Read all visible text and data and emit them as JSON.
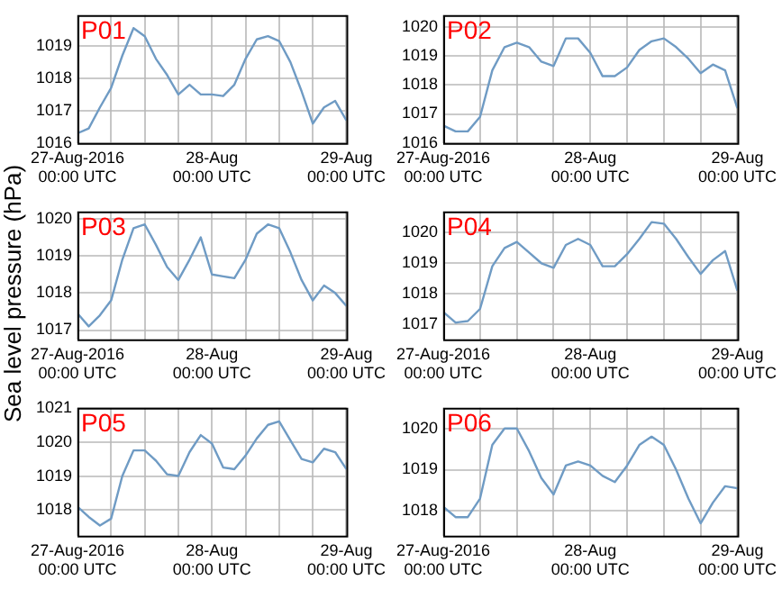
{
  "chart_data": [
    {
      "type": "line",
      "title": "P01",
      "grid": true,
      "legend": false,
      "x": [
        "2016-08-27T00:00",
        "2016-08-27T02:00",
        "2016-08-27T04:00",
        "2016-08-27T06:00",
        "2016-08-27T08:00",
        "2016-08-27T10:00",
        "2016-08-27T12:00",
        "2016-08-27T14:00",
        "2016-08-27T16:00",
        "2016-08-27T18:00",
        "2016-08-27T20:00",
        "2016-08-27T22:00",
        "2016-08-28T00:00",
        "2016-08-28T02:00",
        "2016-08-28T04:00",
        "2016-08-28T06:00",
        "2016-08-28T08:00",
        "2016-08-28T10:00",
        "2016-08-28T12:00",
        "2016-08-28T14:00",
        "2016-08-28T16:00",
        "2016-08-28T18:00",
        "2016-08-28T20:00",
        "2016-08-28T22:00",
        "2016-08-29T00:00"
      ],
      "xlim": [
        "2016-08-27T00:00",
        "2016-08-29T00:00"
      ],
      "xticks": [
        {
          "value": "2016-08-27T00:00",
          "label": "27-Aug-2016\n00:00 UTC"
        },
        {
          "value": "2016-08-27T06:00",
          "label": null
        },
        {
          "value": "2016-08-27T12:00",
          "label": null
        },
        {
          "value": "2016-08-27T18:00",
          "label": null
        },
        {
          "value": "2016-08-28T00:00",
          "label": "28-Aug\n00:00 UTC"
        },
        {
          "value": "2016-08-28T06:00",
          "label": null
        },
        {
          "value": "2016-08-28T12:00",
          "label": null
        },
        {
          "value": "2016-08-28T18:00",
          "label": null
        },
        {
          "value": "2016-08-29T00:00",
          "label": "29-Aug\n00:00 UTC"
        }
      ],
      "ylim": [
        1016,
        1019.95
      ],
      "yticks": [
        1016,
        1017,
        1018,
        1019
      ],
      "series": [
        {
          "color": "#6f9bc4",
          "values": [
            1016.3,
            1016.45,
            1017.1,
            1017.7,
            1018.7,
            1019.55,
            1019.3,
            1018.6,
            1018.1,
            1017.5,
            1017.8,
            1017.5,
            1017.5,
            1017.45,
            1017.8,
            1018.6,
            1019.2,
            1019.3,
            1019.15,
            1018.5,
            1017.6,
            1016.6,
            1017.1,
            1017.3,
            1016.7
          ]
        }
      ]
    },
    {
      "type": "line",
      "title": "P02",
      "grid": true,
      "legend": false,
      "x": [
        "2016-08-27T00:00",
        "2016-08-27T02:00",
        "2016-08-27T04:00",
        "2016-08-27T06:00",
        "2016-08-27T08:00",
        "2016-08-27T10:00",
        "2016-08-27T12:00",
        "2016-08-27T14:00",
        "2016-08-27T16:00",
        "2016-08-27T18:00",
        "2016-08-27T20:00",
        "2016-08-27T22:00",
        "2016-08-28T00:00",
        "2016-08-28T02:00",
        "2016-08-28T04:00",
        "2016-08-28T06:00",
        "2016-08-28T08:00",
        "2016-08-28T10:00",
        "2016-08-28T12:00",
        "2016-08-28T14:00",
        "2016-08-28T16:00",
        "2016-08-28T18:00",
        "2016-08-28T20:00",
        "2016-08-28T22:00",
        "2016-08-29T00:00"
      ],
      "xlim": [
        "2016-08-27T00:00",
        "2016-08-29T00:00"
      ],
      "xticks": [
        {
          "value": "2016-08-27T00:00",
          "label": "27-Aug-2016\n00:00 UTC"
        },
        {
          "value": "2016-08-27T06:00",
          "label": null
        },
        {
          "value": "2016-08-27T12:00",
          "label": null
        },
        {
          "value": "2016-08-27T18:00",
          "label": null
        },
        {
          "value": "2016-08-28T00:00",
          "label": "28-Aug\n00:00 UTC"
        },
        {
          "value": "2016-08-28T06:00",
          "label": null
        },
        {
          "value": "2016-08-28T12:00",
          "label": null
        },
        {
          "value": "2016-08-28T18:00",
          "label": null
        },
        {
          "value": "2016-08-29T00:00",
          "label": "29-Aug\n00:00 UTC"
        }
      ],
      "ylim": [
        1016,
        1020.4
      ],
      "yticks": [
        1016,
        1017,
        1018,
        1019,
        1020
      ],
      "series": [
        {
          "color": "#6f9bc4",
          "values": [
            1016.6,
            1016.4,
            1016.4,
            1016.9,
            1018.5,
            1019.3,
            1019.45,
            1019.3,
            1018.8,
            1018.65,
            1019.6,
            1019.6,
            1019.1,
            1018.3,
            1018.3,
            1018.6,
            1019.2,
            1019.5,
            1019.6,
            1019.3,
            1018.9,
            1018.4,
            1018.7,
            1018.5,
            1017.2
          ]
        }
      ]
    },
    {
      "type": "line",
      "title": "P03",
      "ylabel": "Sea level pressure (hPa)",
      "grid": true,
      "legend": false,
      "x": [
        "2016-08-27T00:00",
        "2016-08-27T02:00",
        "2016-08-27T04:00",
        "2016-08-27T06:00",
        "2016-08-27T08:00",
        "2016-08-27T10:00",
        "2016-08-27T12:00",
        "2016-08-27T14:00",
        "2016-08-27T16:00",
        "2016-08-27T18:00",
        "2016-08-27T20:00",
        "2016-08-27T22:00",
        "2016-08-28T00:00",
        "2016-08-28T02:00",
        "2016-08-28T04:00",
        "2016-08-28T06:00",
        "2016-08-28T08:00",
        "2016-08-28T10:00",
        "2016-08-28T12:00",
        "2016-08-28T14:00",
        "2016-08-28T16:00",
        "2016-08-28T18:00",
        "2016-08-28T20:00",
        "2016-08-28T22:00",
        "2016-08-29T00:00"
      ],
      "xlim": [
        "2016-08-27T00:00",
        "2016-08-29T00:00"
      ],
      "xticks": [
        {
          "value": "2016-08-27T00:00",
          "label": "27-Aug-2016\n00:00 UTC"
        },
        {
          "value": "2016-08-27T06:00",
          "label": null
        },
        {
          "value": "2016-08-27T12:00",
          "label": null
        },
        {
          "value": "2016-08-27T18:00",
          "label": null
        },
        {
          "value": "2016-08-28T00:00",
          "label": "28-Aug\n00:00 UTC"
        },
        {
          "value": "2016-08-28T06:00",
          "label": null
        },
        {
          "value": "2016-08-28T12:00",
          "label": null
        },
        {
          "value": "2016-08-28T18:00",
          "label": null
        },
        {
          "value": "2016-08-29T00:00",
          "label": "29-Aug\n00:00 UTC"
        }
      ],
      "ylim": [
        1016.75,
        1020.2
      ],
      "yticks": [
        1017,
        1018,
        1019,
        1020
      ],
      "series": [
        {
          "color": "#6f9bc4",
          "values": [
            1017.45,
            1017.1,
            1017.4,
            1017.8,
            1018.9,
            1019.75,
            1019.85,
            1019.3,
            1018.7,
            1018.35,
            1018.9,
            1019.5,
            1018.5,
            1018.45,
            1018.4,
            1018.9,
            1019.6,
            1019.85,
            1019.75,
            1019.1,
            1018.35,
            1017.8,
            1018.2,
            1018.0,
            1017.65
          ]
        }
      ]
    },
    {
      "type": "line",
      "title": "P04",
      "grid": true,
      "legend": false,
      "x": [
        "2016-08-27T00:00",
        "2016-08-27T02:00",
        "2016-08-27T04:00",
        "2016-08-27T06:00",
        "2016-08-27T08:00",
        "2016-08-27T10:00",
        "2016-08-27T12:00",
        "2016-08-27T14:00",
        "2016-08-27T16:00",
        "2016-08-27T18:00",
        "2016-08-27T20:00",
        "2016-08-27T22:00",
        "2016-08-28T00:00",
        "2016-08-28T02:00",
        "2016-08-28T04:00",
        "2016-08-28T06:00",
        "2016-08-28T08:00",
        "2016-08-28T10:00",
        "2016-08-28T12:00",
        "2016-08-28T14:00",
        "2016-08-28T16:00",
        "2016-08-28T18:00",
        "2016-08-28T20:00",
        "2016-08-28T22:00",
        "2016-08-29T00:00"
      ],
      "xlim": [
        "2016-08-27T00:00",
        "2016-08-29T00:00"
      ],
      "xticks": [
        {
          "value": "2016-08-27T00:00",
          "label": "27-Aug-2016\n00:00 UTC"
        },
        {
          "value": "2016-08-27T06:00",
          "label": null
        },
        {
          "value": "2016-08-27T12:00",
          "label": null
        },
        {
          "value": "2016-08-27T18:00",
          "label": null
        },
        {
          "value": "2016-08-28T00:00",
          "label": "28-Aug\n00:00 UTC"
        },
        {
          "value": "2016-08-28T06:00",
          "label": null
        },
        {
          "value": "2016-08-28T12:00",
          "label": null
        },
        {
          "value": "2016-08-28T18:00",
          "label": null
        },
        {
          "value": "2016-08-29T00:00",
          "label": "29-Aug\n00:00 UTC"
        }
      ],
      "ylim": [
        1016.5,
        1020.7
      ],
      "yticks": [
        1017,
        1018,
        1019,
        1020
      ],
      "series": [
        {
          "color": "#6f9bc4",
          "values": [
            1017.4,
            1017.05,
            1017.1,
            1017.5,
            1018.9,
            1019.5,
            1019.7,
            1019.35,
            1019.0,
            1018.85,
            1019.6,
            1019.8,
            1019.6,
            1018.9,
            1018.9,
            1019.3,
            1019.8,
            1020.35,
            1020.3,
            1019.8,
            1019.2,
            1018.65,
            1019.1,
            1019.4,
            1018.1
          ]
        }
      ]
    },
    {
      "type": "line",
      "title": "P05",
      "grid": true,
      "legend": false,
      "x": [
        "2016-08-27T00:00",
        "2016-08-27T02:00",
        "2016-08-27T04:00",
        "2016-08-27T06:00",
        "2016-08-27T08:00",
        "2016-08-27T10:00",
        "2016-08-27T12:00",
        "2016-08-27T14:00",
        "2016-08-27T16:00",
        "2016-08-27T18:00",
        "2016-08-27T20:00",
        "2016-08-27T22:00",
        "2016-08-28T00:00",
        "2016-08-28T02:00",
        "2016-08-28T04:00",
        "2016-08-28T06:00",
        "2016-08-28T08:00",
        "2016-08-28T10:00",
        "2016-08-28T12:00",
        "2016-08-28T14:00",
        "2016-08-28T16:00",
        "2016-08-28T18:00",
        "2016-08-28T20:00",
        "2016-08-28T22:00",
        "2016-08-29T00:00"
      ],
      "xlim": [
        "2016-08-27T00:00",
        "2016-08-29T00:00"
      ],
      "xticks": [
        {
          "value": "2016-08-27T00:00",
          "label": "27-Aug-2016\n00:00 UTC"
        },
        {
          "value": "2016-08-27T06:00",
          "label": null
        },
        {
          "value": "2016-08-27T12:00",
          "label": null
        },
        {
          "value": "2016-08-27T18:00",
          "label": null
        },
        {
          "value": "2016-08-28T00:00",
          "label": "28-Aug\n00:00 UTC"
        },
        {
          "value": "2016-08-28T06:00",
          "label": null
        },
        {
          "value": "2016-08-28T12:00",
          "label": null
        },
        {
          "value": "2016-08-28T18:00",
          "label": null
        },
        {
          "value": "2016-08-29T00:00",
          "label": "29-Aug\n00:00 UTC"
        }
      ],
      "ylim": [
        1017.25,
        1021
      ],
      "yticks": [
        1018,
        1019,
        1020,
        1021
      ],
      "series": [
        {
          "color": "#6f9bc4",
          "values": [
            1018.1,
            1017.8,
            1017.55,
            1017.75,
            1019.0,
            1019.75,
            1019.75,
            1019.45,
            1019.05,
            1019.0,
            1019.7,
            1020.2,
            1019.95,
            1019.25,
            1019.2,
            1019.6,
            1020.1,
            1020.5,
            1020.6,
            1020.05,
            1019.5,
            1019.4,
            1019.8,
            1019.7,
            1019.2
          ]
        }
      ]
    },
    {
      "type": "line",
      "title": "P06",
      "grid": true,
      "legend": false,
      "x": [
        "2016-08-27T00:00",
        "2016-08-27T02:00",
        "2016-08-27T04:00",
        "2016-08-27T06:00",
        "2016-08-27T08:00",
        "2016-08-27T10:00",
        "2016-08-27T12:00",
        "2016-08-27T14:00",
        "2016-08-27T16:00",
        "2016-08-27T18:00",
        "2016-08-27T20:00",
        "2016-08-27T22:00",
        "2016-08-28T00:00",
        "2016-08-28T02:00",
        "2016-08-28T04:00",
        "2016-08-28T06:00",
        "2016-08-28T08:00",
        "2016-08-28T10:00",
        "2016-08-28T12:00",
        "2016-08-28T14:00",
        "2016-08-28T16:00",
        "2016-08-28T18:00",
        "2016-08-28T20:00",
        "2016-08-28T22:00",
        "2016-08-29T00:00"
      ],
      "xlim": [
        "2016-08-27T00:00",
        "2016-08-29T00:00"
      ],
      "xticks": [
        {
          "value": "2016-08-27T00:00",
          "label": "27-Aug-2016\n00:00 UTC"
        },
        {
          "value": "2016-08-27T06:00",
          "label": null
        },
        {
          "value": "2016-08-27T12:00",
          "label": null
        },
        {
          "value": "2016-08-27T18:00",
          "label": null
        },
        {
          "value": "2016-08-28T00:00",
          "label": "28-Aug\n00:00 UTC"
        },
        {
          "value": "2016-08-28T06:00",
          "label": null
        },
        {
          "value": "2016-08-28T12:00",
          "label": null
        },
        {
          "value": "2016-08-28T18:00",
          "label": null
        },
        {
          "value": "2016-08-29T00:00",
          "label": "29-Aug\n00:00 UTC"
        }
      ],
      "ylim": [
        1017.4,
        1020.5
      ],
      "yticks": [
        1018,
        1019,
        1020
      ],
      "series": [
        {
          "color": "#6f9bc4",
          "values": [
            1018.1,
            1017.85,
            1017.85,
            1018.3,
            1019.6,
            1020.0,
            1020.0,
            1019.45,
            1018.8,
            1018.4,
            1019.1,
            1019.2,
            1019.1,
            1018.85,
            1018.7,
            1019.1,
            1019.6,
            1019.8,
            1019.6,
            1019.0,
            1018.3,
            1017.7,
            1018.2,
            1018.6,
            1018.55
          ]
        }
      ]
    }
  ]
}
